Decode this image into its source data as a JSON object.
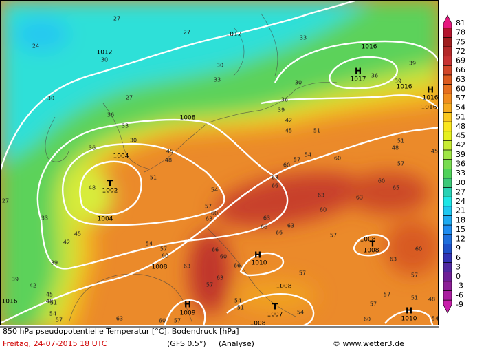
{
  "footer": {
    "title": "850 hPa pseudopotentielle Temperatur [°C], Bodendruck [hPa]",
    "date": "Freitag, 24-07-2015   18 UTC",
    "model": "(GFS 0.5°)",
    "run": "(Analyse)",
    "credit": "© www.wetter3.de"
  },
  "colorbar": {
    "labels": [
      81,
      78,
      75,
      72,
      69,
      66,
      63,
      60,
      57,
      54,
      51,
      48,
      45,
      42,
      39,
      36,
      33,
      30,
      27,
      24,
      21,
      18,
      15,
      12,
      9,
      6,
      3,
      0,
      -3,
      -6,
      -9
    ],
    "colors": [
      "#e6197f",
      "#b4142d",
      "#a01e1e",
      "#b42828",
      "#c83232",
      "#d24628",
      "#dc5a1e",
      "#e66e1e",
      "#f08c1e",
      "#f5aa1e",
      "#fac81e",
      "#fae61e",
      "#e6f01e",
      "#c8eb32",
      "#a0e646",
      "#78dc50",
      "#50d25a",
      "#3cc878",
      "#28d2b4",
      "#1ee6e6",
      "#1ec8f0",
      "#1eaaf0",
      "#1e8cf0",
      "#1e6edc",
      "#1e50c8",
      "#3232b4",
      "#5028a0",
      "#6e1e96",
      "#8c1e96",
      "#aa1ea0",
      "#c81eaa"
    ]
  },
  "pressure_labels": [
    "1012",
    "1012",
    "1016",
    "H",
    "1017",
    "1016",
    "H",
    "1016",
    "1016",
    "1008",
    "1004",
    "T",
    "1002",
    "1004",
    "1008",
    "H",
    "1010",
    "1008",
    "T",
    "1007",
    "H",
    "1009",
    "1008",
    "T",
    "1008",
    "H",
    "1010",
    "1016",
    "1008"
  ],
  "contour_labels": [
    "27",
    "27",
    "33",
    "24",
    "30",
    "30",
    "33",
    "30",
    "36",
    "36",
    "39",
    "39",
    "27",
    "30",
    "33",
    "36",
    "36",
    "30",
    "45",
    "48",
    "51",
    "42",
    "45",
    "39",
    "54",
    "57",
    "60",
    "60",
    "51",
    "48",
    "57",
    "60",
    "65",
    "63",
    "63",
    "60",
    "66",
    "63",
    "54",
    "57",
    "60",
    "63",
    "66",
    "63",
    "63",
    "66",
    "57",
    "54",
    "57",
    "60",
    "63",
    "66",
    "60",
    "66",
    "63",
    "57",
    "54",
    "51",
    "57",
    "57",
    "60",
    "63",
    "57",
    "54",
    "57",
    "60",
    "63",
    "60",
    "57",
    "42",
    "39",
    "39",
    "42",
    "45",
    "48",
    "51",
    "54",
    "57",
    "33",
    "45",
    "48",
    "51",
    "27",
    "45",
    "48",
    "51",
    "54"
  ]
}
